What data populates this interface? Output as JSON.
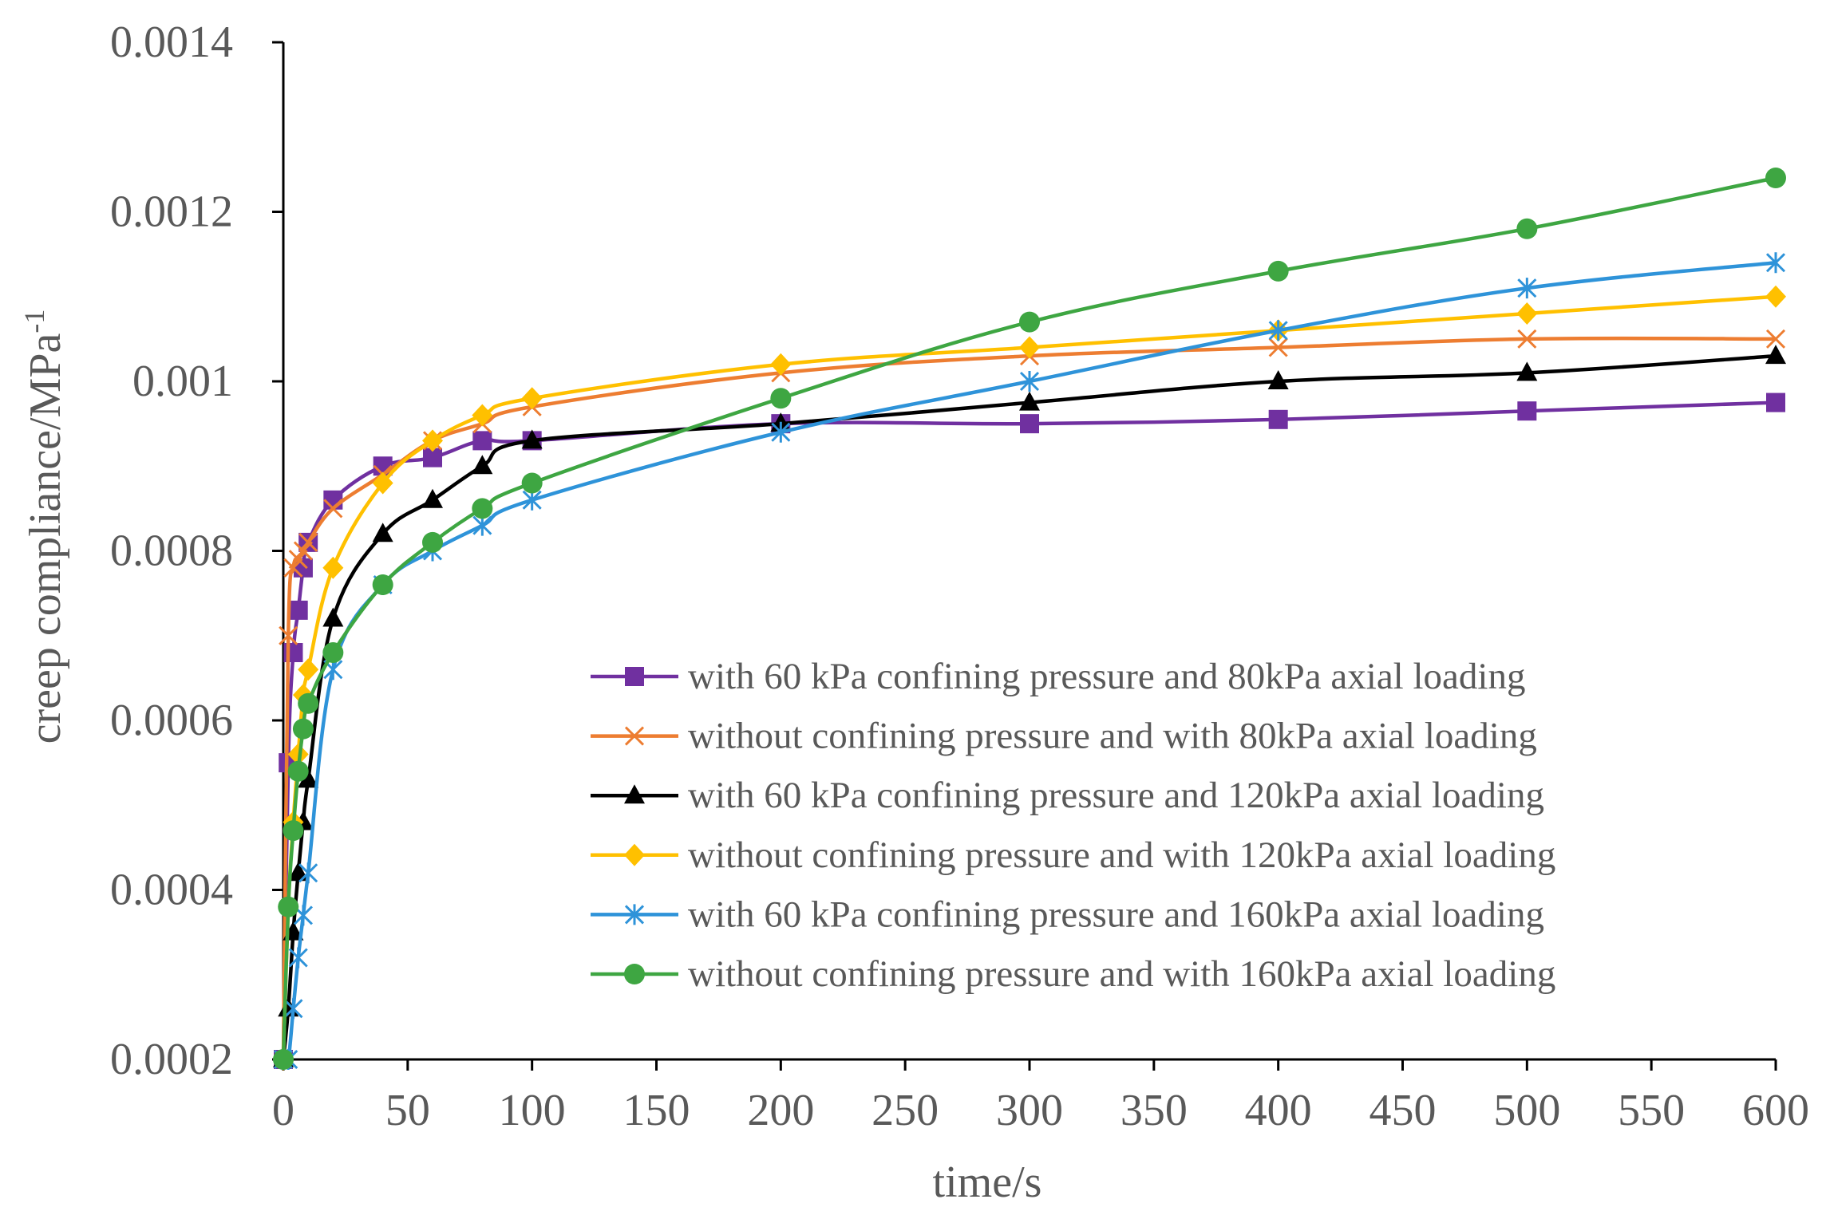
{
  "chart_data": {
    "type": "line",
    "title": "",
    "xlabel": "time/s",
    "ylabel": "creep compliance/MPa",
    "ylabel_sup": "-1",
    "xlim": [
      0,
      600
    ],
    "ylim": [
      0.0002,
      0.0014
    ],
    "x_ticks": [
      0,
      50,
      100,
      150,
      200,
      250,
      300,
      350,
      400,
      450,
      500,
      550,
      600
    ],
    "x_tick_labels": [
      "0",
      "50",
      "100",
      "150",
      "200",
      "250",
      "300",
      "350",
      "400",
      "450",
      "500",
      "550",
      "600"
    ],
    "y_ticks": [
      0.0002,
      0.0004,
      0.0006,
      0.0008,
      0.001,
      0.0012,
      0.0014
    ],
    "y_tick_labels": [
      "0.0002",
      "0.0004",
      "0.0006",
      "0.0008",
      "0.001",
      "0.0012",
      "0.0014"
    ],
    "grid": false,
    "legend_position": "bottom-right",
    "series": [
      {
        "name": "with 60 kPa confining pressure and 80kPa axial loading",
        "color": "#7030A0",
        "marker": "square",
        "x": [
          0,
          2,
          4,
          6,
          8,
          10,
          20,
          40,
          60,
          80,
          100,
          200,
          300,
          400,
          500,
          600
        ],
        "y": [
          0.0002,
          0.00055,
          0.00068,
          0.00073,
          0.00078,
          0.00081,
          0.00086,
          0.0009,
          0.00091,
          0.00093,
          0.00093,
          0.00095,
          0.00095,
          0.000955,
          0.000965,
          0.000975
        ]
      },
      {
        "name": "without confining pressure and with 80kPa axial loading",
        "color": "#ED7D31",
        "marker": "x",
        "x": [
          0,
          2,
          4,
          6,
          8,
          10,
          20,
          40,
          60,
          80,
          100,
          200,
          300,
          400,
          500,
          600
        ],
        "y": [
          0.0002,
          0.0007,
          0.00078,
          0.00079,
          0.0008,
          0.00081,
          0.00085,
          0.00089,
          0.00093,
          0.00095,
          0.00097,
          0.00101,
          0.00103,
          0.00104,
          0.00105,
          0.00105
        ]
      },
      {
        "name": "with 60 kPa confining pressure and 120kPa axial loading",
        "color": "#000000",
        "marker": "triangle",
        "x": [
          0,
          2,
          4,
          6,
          8,
          10,
          20,
          40,
          60,
          80,
          100,
          200,
          300,
          400,
          500,
          600
        ],
        "y": [
          0.0002,
          0.00026,
          0.00035,
          0.00042,
          0.00048,
          0.00053,
          0.00072,
          0.00082,
          0.00086,
          0.0009,
          0.00093,
          0.00095,
          0.000975,
          0.001,
          0.00101,
          0.00103
        ]
      },
      {
        "name": "without confining pressure and with 120kPa axial loading",
        "color": "#FFC000",
        "marker": "diamond",
        "x": [
          0,
          2,
          4,
          6,
          8,
          10,
          20,
          40,
          60,
          80,
          100,
          200,
          300,
          400,
          500,
          600
        ],
        "y": [
          0.0002,
          0.00038,
          0.00048,
          0.00056,
          0.00063,
          0.00066,
          0.00078,
          0.00088,
          0.00093,
          0.00096,
          0.00098,
          0.00102,
          0.00104,
          0.00106,
          0.00108,
          0.0011
        ]
      },
      {
        "name": "with 60 kPa confining pressure and 160kPa axial loading",
        "color": "#2E93D9",
        "marker": "star",
        "x": [
          0,
          2,
          4,
          6,
          8,
          10,
          20,
          40,
          60,
          80,
          100,
          200,
          300,
          400,
          500,
          600
        ],
        "y": [
          0.0002,
          0.0002,
          0.00026,
          0.00032,
          0.00037,
          0.00042,
          0.00066,
          0.00076,
          0.0008,
          0.00083,
          0.00086,
          0.00094,
          0.001,
          0.00106,
          0.00111,
          0.00114
        ]
      },
      {
        "name": "without confining pressure and with 160kPa axial loading",
        "color": "#3EA642",
        "marker": "circle",
        "x": [
          0,
          2,
          4,
          6,
          8,
          10,
          20,
          40,
          60,
          80,
          100,
          200,
          300,
          400,
          500,
          600
        ],
        "y": [
          0.0002,
          0.00038,
          0.00047,
          0.00054,
          0.00059,
          0.00062,
          0.00068,
          0.00076,
          0.00081,
          0.00085,
          0.00088,
          0.00098,
          0.00107,
          0.00113,
          0.00118,
          0.00124
        ]
      }
    ]
  }
}
